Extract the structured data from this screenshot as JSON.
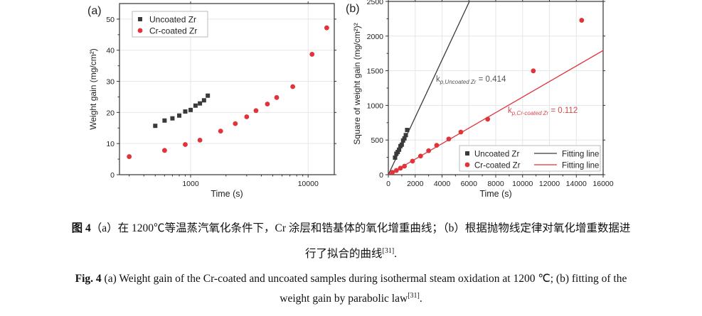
{
  "chart_data": [
    {
      "type": "scatter",
      "panel_label": "(a)",
      "xlabel": "Time (s)",
      "ylabel": "Weight gain (mg/cm²)",
      "x_scale": "log",
      "xlim": [
        248,
        16700
      ],
      "ylim": [
        0,
        55
      ],
      "xticks": [
        1000,
        10000
      ],
      "xtick_labels": [
        "1000",
        "10000"
      ],
      "yticks": [
        0,
        10,
        20,
        30,
        40,
        50
      ],
      "ytick_labels": [
        "0",
        "10",
        "20",
        "30",
        "40",
        "50"
      ],
      "grid": true,
      "legend": "top-left",
      "series": [
        {
          "name": "Uncoated Zr",
          "marker": "square",
          "color": "#3a3a3a",
          "x": [
            500,
            600,
            700,
            800,
            900,
            1000,
            1100,
            1200,
            1300,
            1400
          ],
          "y": [
            15.7,
            17.4,
            18.1,
            19.0,
            20.3,
            20.8,
            22.2,
            22.9,
            23.9,
            25.4
          ]
        },
        {
          "name": "Cr-coated Zr",
          "marker": "circle",
          "color": "#e0333a",
          "x": [
            300,
            600,
            900,
            1200,
            1800,
            2400,
            3000,
            3600,
            4500,
            5400,
            7400,
            10800,
            14400
          ],
          "y": [
            5.8,
            7.8,
            9.7,
            11.1,
            14.0,
            16.4,
            18.6,
            20.6,
            22.7,
            24.8,
            28.3,
            38.7,
            47.2
          ]
        }
      ]
    },
    {
      "type": "scatter",
      "panel_label": "(b)",
      "xlabel": "Time (s)",
      "ylabel": "Square of weight gain (mg/cm²)²",
      "xlim": [
        0,
        16000
      ],
      "ylim": [
        0,
        2500
      ],
      "xticks": [
        0,
        2000,
        4000,
        6000,
        8000,
        10000,
        12000,
        14000,
        16000
      ],
      "xtick_labels": [
        "0",
        "2000",
        "4000",
        "6000",
        "8000",
        "10000",
        "12000",
        "14000",
        "16000"
      ],
      "yticks": [
        0,
        500,
        1000,
        1500,
        2000,
        2500
      ],
      "ytick_labels": [
        "0",
        "500",
        "1000",
        "1500",
        "2000",
        "2500"
      ],
      "grid": true,
      "legend": "bottom-right",
      "series": [
        {
          "name": "Uncoated Zr",
          "marker": "square",
          "color": "#3a3a3a",
          "x": [
            500,
            600,
            700,
            800,
            900,
            1000,
            1100,
            1200,
            1300,
            1400
          ],
          "y": [
            246,
            303,
            328,
            361,
            412,
            433,
            493,
            524,
            571,
            645
          ]
        },
        {
          "name": "Cr-coated Zr",
          "marker": "circle",
          "color": "#e0333a",
          "x": [
            300,
            600,
            900,
            1200,
            1800,
            2400,
            3000,
            3600,
            4500,
            5400,
            7400,
            10800,
            14400
          ],
          "y": [
            34,
            61,
            94,
            123,
            196,
            269,
            346,
            424,
            515,
            615,
            801,
            1498,
            2228
          ]
        }
      ],
      "fits": [
        {
          "name": "Fitting line",
          "color": "#3a3a3a",
          "slope": 0.414,
          "annotation_k": "k",
          "annotation_sub": "p,Uncoated Zr",
          "annotation_val": " = 0.414",
          "annotation_color": "#555555"
        },
        {
          "name": "Fitting line",
          "color": "#e0333a",
          "slope": 0.112,
          "annotation_k": "k",
          "annotation_sub": "p,Cr-coated Zr",
          "annotation_val": " = 0.112",
          "annotation_color": "#d4474c"
        }
      ]
    }
  ],
  "caption": {
    "cn_label": "图 4",
    "cn_line1": "（a）在 1200℃等温蒸汽氧化条件下，Cr 涂层和锆基体的氧化增重曲线；（b）根据抛物线定律对氧化增重数据进",
    "cn_line2": "行了拟合的曲线",
    "cn_ref": "[31]",
    "cn_end": ".",
    "en_label": "Fig. 4",
    "en_line1": " (a) Weight gain of the Cr-coated and uncoated samples during isothermal steam oxidation at 1200 ℃; (b) fitting of the",
    "en_line2": "weight gain by parabolic law",
    "en_ref": "[31]",
    "en_end": "."
  }
}
